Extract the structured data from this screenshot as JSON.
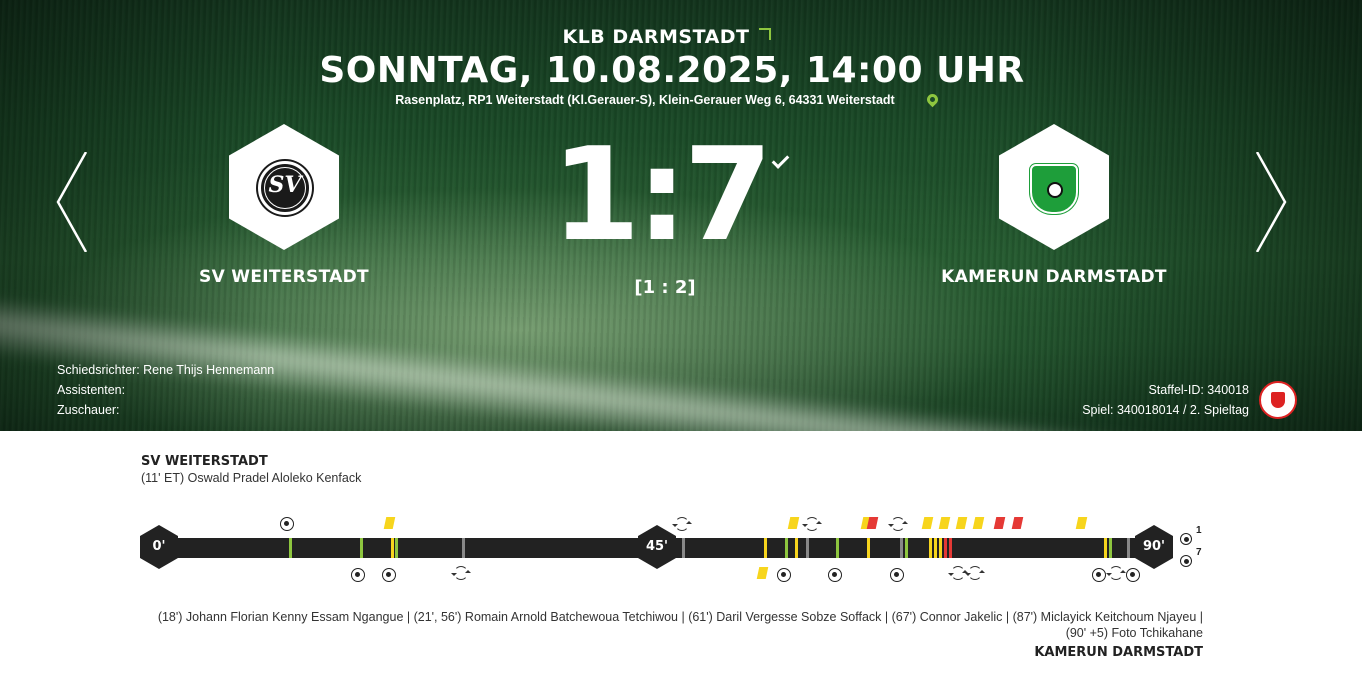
{
  "header": {
    "league": "KLB DARMSTADT",
    "datetime": "SONNTAG, 10.08.2025, 14:00 UHR",
    "venue": "Rasenplatz, RP1 Weiterstadt (Kl.Gerauer-S), Klein-Gerauer Weg 6, 64331 Weiterstadt"
  },
  "match": {
    "home_team": "SV WEITERSTADT",
    "away_team": "KAMERUN DARMSTADT",
    "score": "1:7",
    "halftime": "[1 : 2]",
    "home_logo_text": "SV",
    "home_logo_caption": "WEITERSTADT",
    "away_logo_caption": "SV Kamerun Darmstadt"
  },
  "officials": {
    "referee": "Schiedsrichter: Rene Thijs Hennemann",
    "assistants": "Assistenten:",
    "spectators": "Zuschauer:"
  },
  "ids": {
    "staffel": "Staffel-ID: 340018",
    "spiel": "Spiel: 340018014 / 2. Spieltag"
  },
  "timeline": {
    "home_title": "SV WEITERSTADT",
    "home_events": "(11' ET) Oswald Pradel Aloleko Kenfack",
    "markers": [
      "0'",
      "45'",
      "90'"
    ],
    "final_home": "1",
    "final_away": "7",
    "away_events": "(18') Johann Florian Kenny Essam Ngangue | (21', 56') Romain Arnold Batchewoua Tetchiwou | (61') Daril Vergesse Sobze Soffack | (67') Connor Jakelic | (87') Miclayick Keitchoum Njayeu | (90' +5) Foto Tchikahane",
    "away_title": "KAMERUN DARMSTADT"
  },
  "colors": {
    "accent": "#8ec63f",
    "yellow_card": "#f7d51d",
    "red_card": "#e53935",
    "bar": "#222222"
  },
  "icons": [
    "league-link-icon",
    "location-pin-icon",
    "result-confirmed-icon",
    "previous-match-icon",
    "next-match-icon",
    "goal-icon",
    "substitution-icon",
    "yellow-card-icon",
    "red-card-icon"
  ]
}
